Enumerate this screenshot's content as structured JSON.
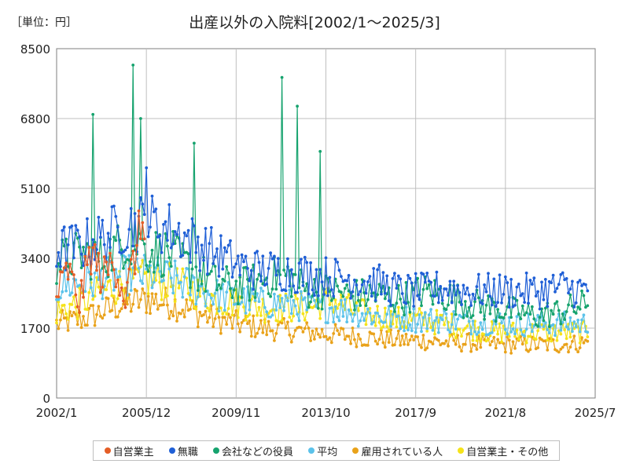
{
  "header": {
    "unit_label": "［単位：円］",
    "title": "出産以外の入院料[2002/1～2025/3]"
  },
  "chart_data": {
    "type": "line",
    "title": "出産以外の入院料[2002/1～2025/3]",
    "unit": "［単位：円］",
    "xlabel": "",
    "ylabel": "",
    "x_tick_labels": [
      "2002/1",
      "2005/12",
      "2009/11",
      "2013/10",
      "2017/9",
      "2021/8",
      "2025/7"
    ],
    "x_range": [
      "2002/1",
      "2025/7"
    ],
    "y_tick_labels": [
      "0",
      "1700",
      "3400",
      "5100",
      "6800",
      "8500"
    ],
    "ylim": [
      0,
      8500
    ],
    "grid": true,
    "legend_position": "bottom",
    "series": [
      {
        "name": "自営業主",
        "color": "#e45d26",
        "start": "2002/1",
        "end": "2005/12",
        "samples": [
          [
            2002.0,
            2500
          ],
          [
            2002.5,
            3100
          ],
          [
            2003.0,
            2300
          ],
          [
            2003.5,
            3600
          ],
          [
            2004.0,
            2900
          ],
          [
            2004.5,
            3400
          ],
          [
            2005.0,
            2400
          ],
          [
            2005.5,
            3700
          ],
          [
            2005.9,
            4700
          ]
        ]
      },
      {
        "name": "無職",
        "color": "#1f5fd6",
        "start": "2002/1",
        "end": "2025/3",
        "samples": [
          [
            2002.0,
            3600
          ],
          [
            2003.0,
            3700
          ],
          [
            2004.0,
            3900
          ],
          [
            2005.0,
            4200
          ],
          [
            2006.0,
            4300
          ],
          [
            2007.0,
            4100
          ],
          [
            2008.0,
            3800
          ],
          [
            2009.0,
            3500
          ],
          [
            2010.0,
            3200
          ],
          [
            2011.0,
            3100
          ],
          [
            2012.0,
            3100
          ],
          [
            2013.0,
            3000
          ],
          [
            2014.0,
            2950
          ],
          [
            2015.0,
            2900
          ],
          [
            2016.0,
            2800
          ],
          [
            2017.0,
            2600
          ],
          [
            2018.0,
            2600
          ],
          [
            2019.0,
            2700
          ],
          [
            2020.0,
            2600
          ],
          [
            2021.0,
            2600
          ],
          [
            2022.0,
            2600
          ],
          [
            2023.0,
            2600
          ],
          [
            2024.0,
            2700
          ],
          [
            2025.2,
            2600
          ]
        ]
      },
      {
        "name": "会社などの役員",
        "color": "#16a36e",
        "start": "2002/1",
        "end": "2025/3",
        "samples": [
          [
            2002.0,
            3300
          ],
          [
            2003.0,
            3500
          ],
          [
            2004.0,
            3400
          ],
          [
            2005.0,
            3800
          ],
          [
            2006.0,
            3600
          ],
          [
            2007.0,
            3500
          ],
          [
            2008.0,
            3100
          ],
          [
            2009.0,
            2800
          ],
          [
            2010.0,
            2700
          ],
          [
            2011.0,
            2900
          ],
          [
            2012.0,
            3000
          ],
          [
            2013.0,
            2600
          ],
          [
            2014.0,
            2600
          ],
          [
            2015.0,
            2500
          ],
          [
            2016.0,
            2500
          ],
          [
            2017.0,
            2400
          ],
          [
            2018.0,
            2600
          ],
          [
            2019.0,
            2500
          ],
          [
            2020.0,
            2300
          ],
          [
            2021.0,
            2200
          ],
          [
            2022.0,
            2100
          ],
          [
            2023.0,
            2000
          ],
          [
            2024.0,
            2100
          ],
          [
            2025.2,
            2300
          ]
        ]
      },
      {
        "name": "平均",
        "color": "#5bc2ea",
        "start": "2002/1",
        "end": "2025/3",
        "samples": [
          [
            2002.0,
            2700
          ],
          [
            2003.0,
            2800
          ],
          [
            2004.0,
            2900
          ],
          [
            2005.0,
            3000
          ],
          [
            2006.0,
            3000
          ],
          [
            2007.0,
            2900
          ],
          [
            2008.0,
            2700
          ],
          [
            2009.0,
            2500
          ],
          [
            2010.0,
            2400
          ],
          [
            2011.0,
            2300
          ],
          [
            2012.0,
            2300
          ],
          [
            2013.0,
            2200
          ],
          [
            2014.0,
            2200
          ],
          [
            2015.0,
            2100
          ],
          [
            2016.0,
            2000
          ],
          [
            2017.0,
            1950
          ],
          [
            2018.0,
            1900
          ],
          [
            2019.0,
            1900
          ],
          [
            2020.0,
            1850
          ],
          [
            2021.0,
            1850
          ],
          [
            2022.0,
            1800
          ],
          [
            2023.0,
            1800
          ],
          [
            2024.0,
            1800
          ],
          [
            2025.2,
            1800
          ]
        ]
      },
      {
        "name": "雇用されている人",
        "color": "#e9a21a",
        "start": "2002/1",
        "end": "2025/3",
        "samples": [
          [
            2002.0,
            1800
          ],
          [
            2003.0,
            1900
          ],
          [
            2004.0,
            2100
          ],
          [
            2005.0,
            2300
          ],
          [
            2006.0,
            2400
          ],
          [
            2007.0,
            2300
          ],
          [
            2008.0,
            2100
          ],
          [
            2009.0,
            1900
          ],
          [
            2010.0,
            1800
          ],
          [
            2011.0,
            1700
          ],
          [
            2012.0,
            1650
          ],
          [
            2013.0,
            1600
          ],
          [
            2014.0,
            1550
          ],
          [
            2015.0,
            1500
          ],
          [
            2016.0,
            1450
          ],
          [
            2017.0,
            1400
          ],
          [
            2018.0,
            1400
          ],
          [
            2019.0,
            1350
          ],
          [
            2020.0,
            1350
          ],
          [
            2021.0,
            1300
          ],
          [
            2022.0,
            1300
          ],
          [
            2023.0,
            1300
          ],
          [
            2024.0,
            1300
          ],
          [
            2025.2,
            1350
          ]
        ]
      },
      {
        "name": "自営業主・その他",
        "color": "#f5e31a",
        "start": "2002/1",
        "end": "2025/3",
        "samples": [
          [
            2002.0,
            2100
          ],
          [
            2003.0,
            2300
          ],
          [
            2004.0,
            2600
          ],
          [
            2005.0,
            2800
          ],
          [
            2006.0,
            2900
          ],
          [
            2007.0,
            2800
          ],
          [
            2008.0,
            2600
          ],
          [
            2009.0,
            2400
          ],
          [
            2010.0,
            2300
          ],
          [
            2011.0,
            2200
          ],
          [
            2012.0,
            2200
          ],
          [
            2013.0,
            2200
          ],
          [
            2014.0,
            2400
          ],
          [
            2015.0,
            2100
          ],
          [
            2016.0,
            2000
          ],
          [
            2017.0,
            1900
          ],
          [
            2018.0,
            1900
          ],
          [
            2019.0,
            1800
          ],
          [
            2020.0,
            1700
          ],
          [
            2021.0,
            1600
          ],
          [
            2022.0,
            1600
          ],
          [
            2023.0,
            1600
          ],
          [
            2024.0,
            1600
          ],
          [
            2025.2,
            1600
          ]
        ]
      }
    ],
    "peaks": [
      {
        "series": "会社などの役員",
        "x": 2005.3,
        "y": 8100
      },
      {
        "series": "会社などの役員",
        "x": 2011.8,
        "y": 7800
      },
      {
        "series": "会社などの役員",
        "x": 2012.5,
        "y": 7100
      },
      {
        "series": "会社などの役員",
        "x": 2005.7,
        "y": 6800
      },
      {
        "series": "会社などの役員",
        "x": 2003.6,
        "y": 6900
      },
      {
        "series": "会社などの役員",
        "x": 2008.0,
        "y": 6200
      },
      {
        "series": "会社などの役員",
        "x": 2013.5,
        "y": 6000
      },
      {
        "series": "無職",
        "x": 2005.9,
        "y": 5600
      }
    ]
  }
}
